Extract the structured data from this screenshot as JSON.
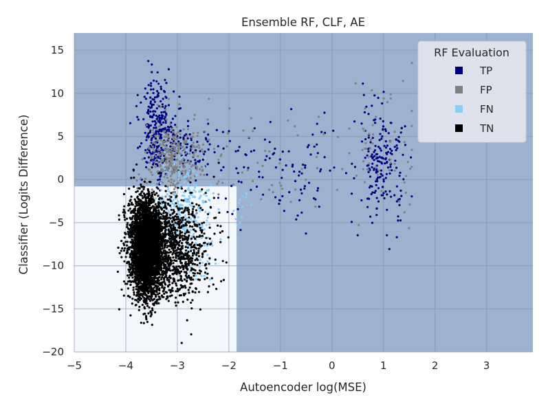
{
  "chart_data": {
    "type": "scatter",
    "title": "Ensemble RF, CLF, AE",
    "xlabel": "Autoencoder log(MSE)",
    "ylabel": "Classifier (Logits Difference)",
    "xlim": [
      -5,
      3.9
    ],
    "ylim": [
      -20,
      17
    ],
    "xticks": [
      -5,
      -4,
      -3,
      -2,
      -1,
      0,
      1,
      2,
      3
    ],
    "xtick_labels": [
      "−5",
      "−4",
      "−3",
      "−2",
      "−1",
      "0",
      "1",
      "2",
      "3"
    ],
    "yticks": [
      -20,
      -15,
      -10,
      -5,
      0,
      5,
      10,
      15
    ],
    "ytick_labels": [
      "−20",
      "−15",
      "−10",
      "−5",
      "0",
      "5",
      "10",
      "15"
    ],
    "grid": true,
    "legend": {
      "title": "RF Evaluation",
      "placement": "top-right"
    },
    "decision_regions": [
      {
        "label": "negative",
        "color": "#f3f7fb",
        "x_range": [
          -5,
          -1.85
        ],
        "y_range": [
          -20,
          -0.8
        ]
      },
      {
        "label": "positive",
        "color": "#9cb2cf"
      }
    ],
    "series": [
      {
        "name": "TP",
        "color": "#00007f",
        "clusters": [
          {
            "center": [
              -3.4,
              6.0
            ],
            "spread": [
              0.15,
              2.8
            ],
            "count": 260
          },
          {
            "center": [
              -3.0,
              3.5
            ],
            "spread": [
              0.35,
              1.8
            ],
            "count": 140
          },
          {
            "center": [
              -1.0,
              1.0
            ],
            "spread": [
              0.75,
              3.0
            ],
            "count": 110
          },
          {
            "center": [
              0.95,
              2.0
            ],
            "spread": [
              0.25,
              3.5
            ],
            "count": 190
          }
        ]
      },
      {
        "name": "FP",
        "color": "#808080",
        "clusters": [
          {
            "center": [
              -3.1,
              2.5
            ],
            "spread": [
              0.28,
              2.2
            ],
            "count": 330
          },
          {
            "center": [
              -1.2,
              2.0
            ],
            "spread": [
              0.9,
              3.0
            ],
            "count": 45
          },
          {
            "center": [
              1.0,
              3.0
            ],
            "spread": [
              0.4,
              4.0
            ],
            "count": 60
          }
        ]
      },
      {
        "name": "FN",
        "color": "#87cefa",
        "clusters": [
          {
            "center": [
              -2.9,
              -3.5
            ],
            "spread": [
              0.28,
              2.8
            ],
            "count": 260
          },
          {
            "center": [
              -2.6,
              -7.5
            ],
            "spread": [
              0.22,
              3.5
            ],
            "count": 70
          },
          {
            "center": [
              -1.7,
              -3.0
            ],
            "spread": [
              0.2,
              1.5
            ],
            "count": 15
          }
        ]
      },
      {
        "name": "TN",
        "color": "#000000",
        "clusters": [
          {
            "center": [
              -3.6,
              -8.0
            ],
            "spread": [
              0.16,
              2.8
            ],
            "count": 3200
          },
          {
            "center": [
              -3.1,
              -8.0
            ],
            "spread": [
              0.35,
              3.0
            ],
            "count": 1100
          }
        ]
      }
    ]
  }
}
